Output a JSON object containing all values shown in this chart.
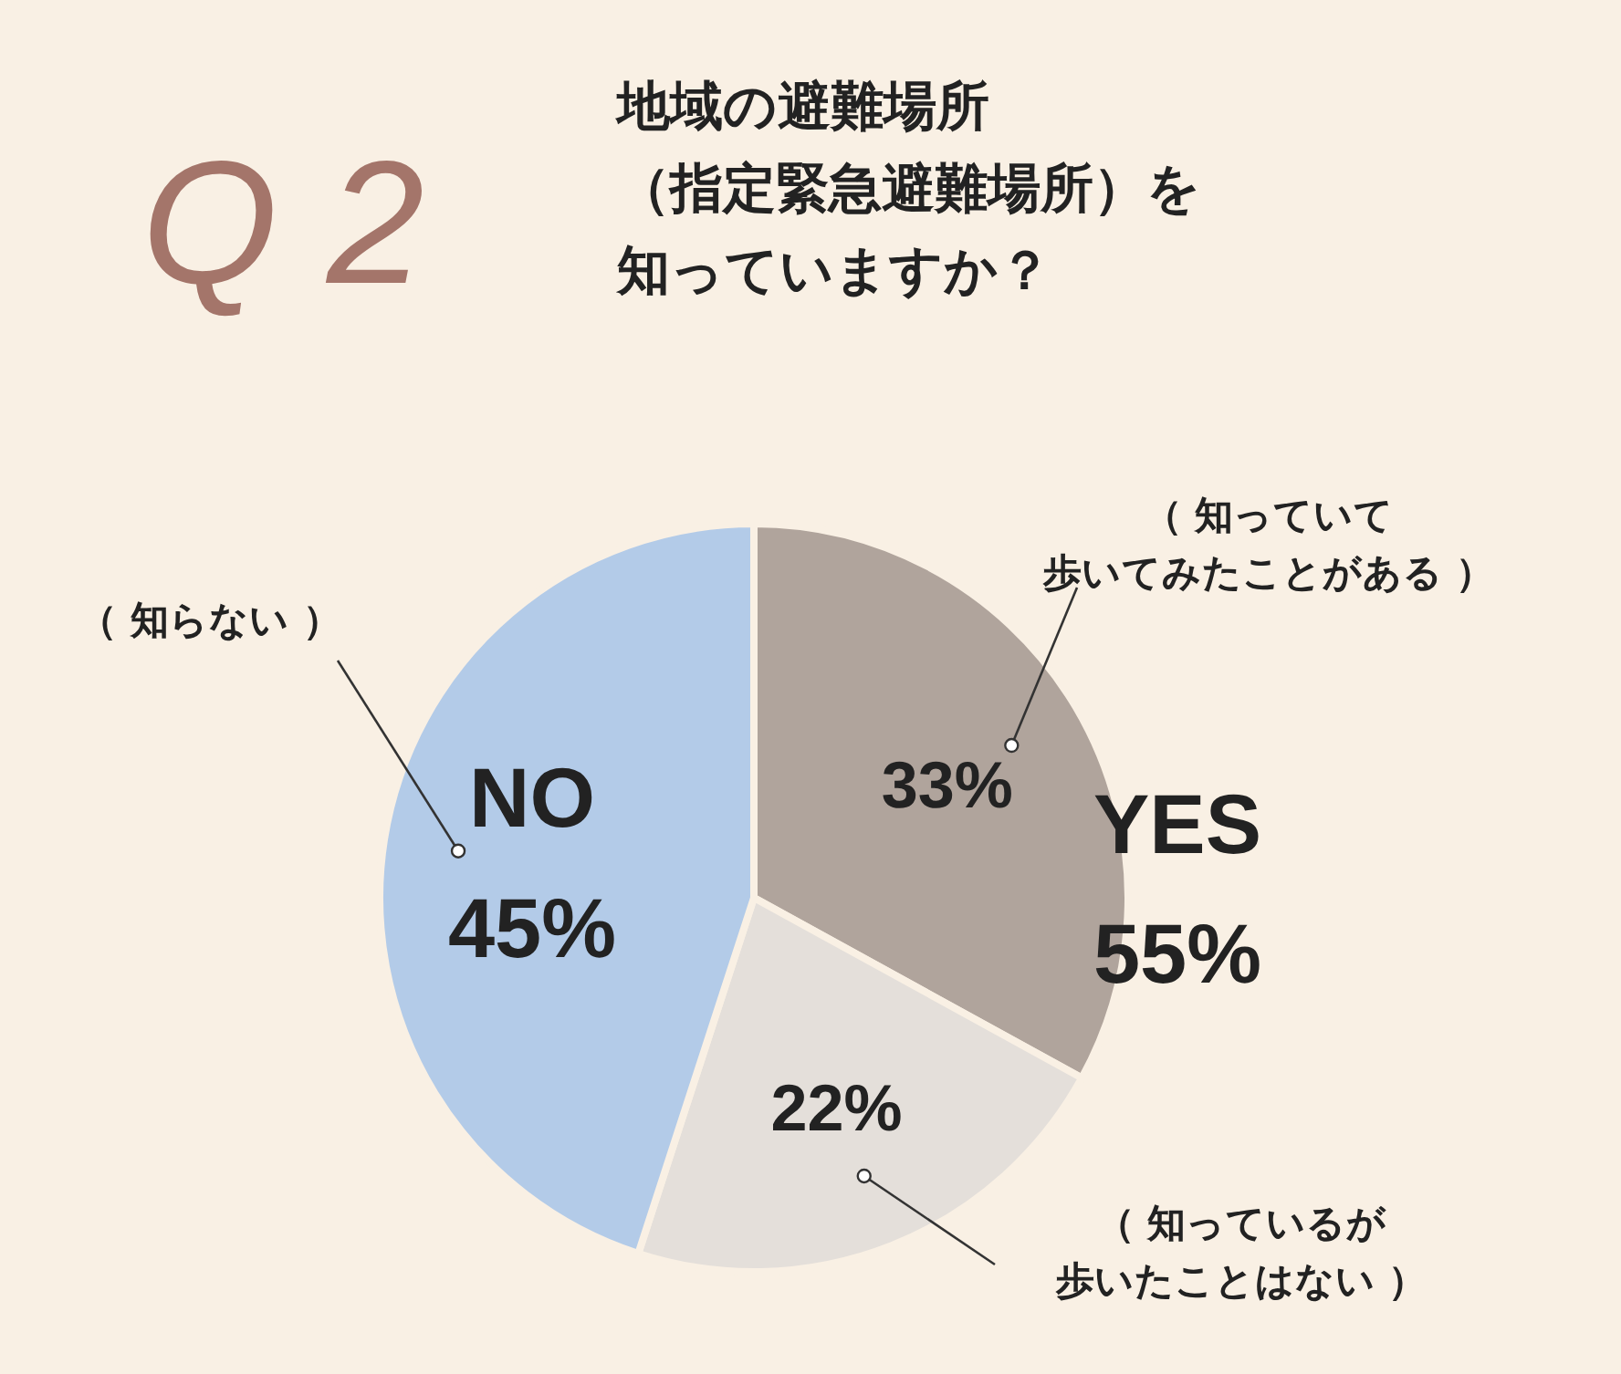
{
  "chart_data": {
    "type": "pie",
    "title": "地域の避難場所（指定緊急避難場所）を知っていますか？",
    "categories": [
      "（ 知っていて歩いてみたことがある ）",
      "（ 知っているが歩いたことはない ）",
      "（ 知らない ）"
    ],
    "values": [
      33,
      22,
      45
    ],
    "colors": [
      "#b0a49c",
      "#e4dfda",
      "#b3cbe8"
    ],
    "value_labels": [
      "33%",
      "22%",
      "NO\n45%"
    ],
    "annotations": [
      "Q 2",
      "YES\n55%"
    ]
  }
}
